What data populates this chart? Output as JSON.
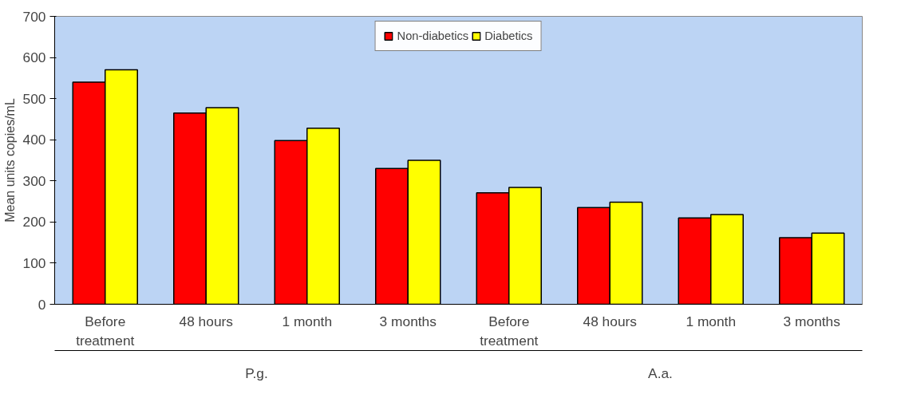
{
  "chart_data": {
    "type": "bar",
    "ylabel": "Mean units copies/mL",
    "categories": [
      "Before treatment",
      "48 hours",
      "1 month",
      "3 months",
      "Before treatment",
      "48 hours",
      "1 month",
      "3 months"
    ],
    "series": [
      {
        "name": "Non-diabetics",
        "color": "#ff0000",
        "values": [
          540,
          465,
          398,
          330,
          271,
          235,
          210,
          162
        ]
      },
      {
        "name": "Diabetics",
        "color": "#ffff00",
        "values": [
          570,
          478,
          428,
          350,
          284,
          248,
          218,
          173
        ]
      }
    ],
    "annotations": [
      "P.g.",
      "A.a."
    ],
    "ylim": [
      0,
      700
    ],
    "yticks": [
      0,
      100,
      200,
      300,
      400,
      500,
      600,
      700
    ],
    "grid": false,
    "legend": "top"
  }
}
